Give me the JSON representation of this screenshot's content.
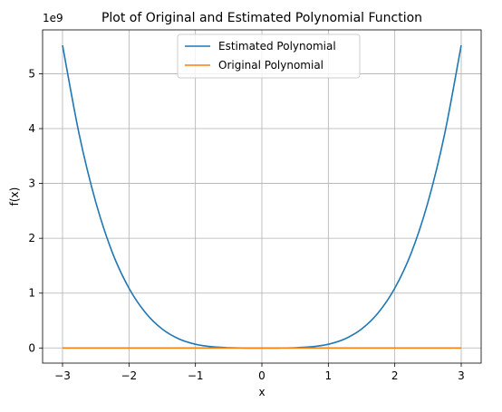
{
  "chart_data": {
    "type": "line",
    "title": "Plot of Original and Estimated Polynomial Function",
    "xlabel": "x",
    "ylabel": "f(x)",
    "y_offset_label": "1e9",
    "xlim": [
      -3.3,
      3.3
    ],
    "ylim": [
      -276000000.0,
      5800000000.0
    ],
    "x_ticks": [
      -3,
      -2,
      -1,
      0,
      1,
      2,
      3
    ],
    "x_tick_labels": [
      "−3",
      "−2",
      "−1",
      "0",
      "1",
      "2",
      "3"
    ],
    "y_ticks": [
      0,
      1000000000.0,
      2000000000.0,
      3000000000.0,
      4000000000.0,
      5000000000.0
    ],
    "y_tick_labels": [
      "0",
      "1",
      "2",
      "3",
      "4",
      "5"
    ],
    "grid": true,
    "legend_position": "top-center",
    "series": [
      {
        "name": "Estimated Polynomial",
        "color": "#1f77b4",
        "x": [
          -3.0,
          -2.75,
          -2.5,
          -2.25,
          -2.0,
          -1.75,
          -1.5,
          -1.25,
          -1.0,
          -0.75,
          -0.5,
          -0.25,
          0.0,
          0.25,
          0.5,
          0.75,
          1.0,
          1.25,
          1.5,
          1.75,
          2.0,
          2.25,
          2.5,
          2.75,
          3.0
        ],
        "y": [
          5520000000.0,
          3900000000.0,
          2660000000.0,
          1740000000.0,
          1090000000.0,
          640000000.0,
          345000000.0,
          166000000.0,
          68000000.0,
          21500000.0,
          4300000.0,
          300000.0,
          0.0,
          300000.0,
          4300000.0,
          21500000.0,
          68000000.0,
          166000000.0,
          345000000.0,
          640000000.0,
          1090000000.0,
          1740000000.0,
          2660000000.0,
          3900000000.0,
          5520000000.0
        ]
      },
      {
        "name": "Original Polynomial",
        "color": "#ff7f0e",
        "x": [
          -3.0,
          3.0
        ],
        "y": [
          0.0,
          0.0
        ]
      }
    ]
  }
}
